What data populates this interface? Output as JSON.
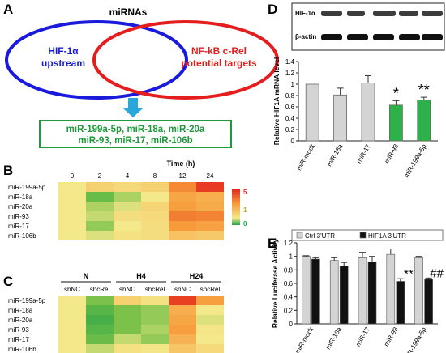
{
  "panel_labels": {
    "a": "A",
    "b": "B",
    "c": "C",
    "d": "D",
    "e": "E"
  },
  "venn": {
    "title": "miRNAs",
    "left_line1": "HIF-1α",
    "left_line2": "upstream",
    "right_line1": "NF-kB c-Rel",
    "right_line2": "potential targets",
    "result_line1": "miR-199a-5p, miR-18a, miR-20a",
    "result_line2": "miR-93, miR-17, miR-106b",
    "left_color": "#1a1adc",
    "right_color": "#e41e1e",
    "arrow_color": "#2ba6d8",
    "box_color": "#1e9a3a"
  },
  "heatmap_colors": [
    "#23a347",
    "#7cc24a",
    "#f4e98a",
    "#f79a3a",
    "#e42b1c"
  ],
  "heatmap_b": {
    "title": "Time (h)",
    "columns": [
      "0",
      "2",
      "4",
      "8",
      "12",
      "24"
    ],
    "rows": [
      "miR-199a-5p",
      "miR-18a",
      "miR-20a",
      "miR-93",
      "miR-17",
      "miR-106b"
    ],
    "values": [
      [
        1.0,
        1.6,
        1.4,
        1.6,
        3.3,
        4.7
      ],
      [
        1.0,
        0.4,
        0.7,
        1.0,
        2.7,
        2.5
      ],
      [
        1.0,
        0.7,
        0.9,
        1.5,
        2.9,
        2.6
      ],
      [
        1.0,
        0.8,
        1.3,
        1.4,
        3.5,
        3.4
      ],
      [
        1.0,
        0.6,
        1.0,
        1.3,
        3.0,
        2.8
      ],
      [
        1.0,
        0.9,
        1.2,
        1.3,
        2.0,
        1.8
      ]
    ],
    "legend_ticks": [
      "5",
      "1",
      "0"
    ]
  },
  "heatmap_c": {
    "groups": [
      "N",
      "H4",
      "H24"
    ],
    "columns": [
      "shNC",
      "shcRel",
      "shNC",
      "shcRel",
      "shNC",
      "shcRel"
    ],
    "rows": [
      "miR-199a-5p",
      "miR-18a",
      "miR-20a",
      "miR-93",
      "miR-17",
      "miR-106b"
    ],
    "values": [
      [
        1.0,
        0.5,
        1.6,
        1.2,
        4.6,
        2.9
      ],
      [
        1.0,
        0.3,
        0.5,
        0.6,
        2.5,
        1.0
      ],
      [
        1.0,
        0.2,
        0.5,
        0.6,
        2.7,
        0.9
      ],
      [
        1.0,
        0.3,
        0.5,
        0.7,
        2.9,
        1.1
      ],
      [
        1.0,
        0.4,
        0.8,
        0.6,
        2.4,
        1.0
      ],
      [
        1.0,
        0.8,
        1.2,
        1.1,
        1.9,
        1.4
      ]
    ]
  },
  "western": {
    "labels": [
      "HIF-1α",
      "β-actin"
    ]
  },
  "chart_data": [
    {
      "type": "bar",
      "panel": "D",
      "categories": [
        "miR-mock",
        "miR-18a",
        "miR-17",
        "miR-93",
        "miR-199a-5p"
      ],
      "values": [
        1.0,
        0.81,
        1.02,
        0.63,
        0.72
      ],
      "errors": [
        0.0,
        0.12,
        0.13,
        0.08,
        0.05
      ],
      "colors": [
        "#d4d4d4",
        "#d4d4d4",
        "#d4d4d4",
        "#2db24a",
        "#2db24a"
      ],
      "significance": [
        "",
        "",
        "",
        "*",
        "**"
      ],
      "ylabel": "Relative HIF1A mRNA level",
      "ylim": [
        0,
        1.4
      ],
      "yticks": [
        "0",
        "0.2",
        "0.4",
        "0.6",
        "0.8",
        "1",
        "1.2",
        "1.4"
      ]
    },
    {
      "type": "bar",
      "panel": "E",
      "categories": [
        "miR-mock",
        "miR-18a",
        "miR-17",
        "miR-93",
        "miR-199a-5p"
      ],
      "series": [
        {
          "name": "Ctrl 3'UTR",
          "values": [
            1.0,
            0.94,
            0.98,
            1.03,
            0.98
          ],
          "errors": [
            0.01,
            0.04,
            0.08,
            0.08,
            0.02
          ],
          "color": "#d4d4d4"
        },
        {
          "name": "HIF1A 3'UTR",
          "values": [
            0.96,
            0.86,
            0.92,
            0.63,
            0.66
          ],
          "errors": [
            0.02,
            0.05,
            0.08,
            0.04,
            0.02
          ],
          "color": "#111111"
        }
      ],
      "significance": [
        "",
        "",
        "",
        "**",
        "##"
      ],
      "ylabel": "Relative Luciferase Activity",
      "ylim": [
        0,
        1.2
      ],
      "yticks": [
        "0",
        "0.2",
        "0.4",
        "0.6",
        "0.8",
        "1",
        "1.2"
      ],
      "legend_position": "top"
    }
  ]
}
